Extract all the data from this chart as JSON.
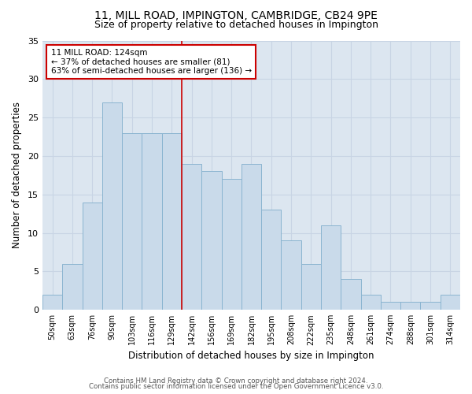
{
  "title": "11, MILL ROAD, IMPINGTON, CAMBRIDGE, CB24 9PE",
  "subtitle": "Size of property relative to detached houses in Impington",
  "xlabel": "Distribution of detached houses by size in Impington",
  "ylabel": "Number of detached properties",
  "bar_labels": [
    "50sqm",
    "63sqm",
    "76sqm",
    "90sqm",
    "103sqm",
    "116sqm",
    "129sqm",
    "142sqm",
    "156sqm",
    "169sqm",
    "182sqm",
    "195sqm",
    "208sqm",
    "222sqm",
    "235sqm",
    "248sqm",
    "261sqm",
    "274sqm",
    "288sqm",
    "301sqm",
    "314sqm"
  ],
  "bar_values": [
    2,
    6,
    14,
    27,
    23,
    23,
    23,
    19,
    18,
    17,
    19,
    13,
    9,
    6,
    11,
    4,
    2,
    1,
    1,
    1,
    2
  ],
  "bar_color": "#c9daea",
  "bar_edgecolor": "#8ab4d0",
  "vline_x": 6.5,
  "vline_color": "#cc0000",
  "annotation_text": "11 MILL ROAD: 124sqm\n← 37% of detached houses are smaller (81)\n63% of semi-detached houses are larger (136) →",
  "annotation_box_edgecolor": "#cc0000",
  "annotation_box_facecolor": "#ffffff",
  "ylim": [
    0,
    35
  ],
  "yticks": [
    0,
    5,
    10,
    15,
    20,
    25,
    30,
    35
  ],
  "grid_color": "#c8d4e4",
  "background_color": "#dce6f0",
  "footer_line1": "Contains HM Land Registry data © Crown copyright and database right 2024.",
  "footer_line2": "Contains public sector information licensed under the Open Government Licence v3.0.",
  "title_fontsize": 10,
  "subtitle_fontsize": 9,
  "xlabel_fontsize": 8.5,
  "ylabel_fontsize": 8.5
}
